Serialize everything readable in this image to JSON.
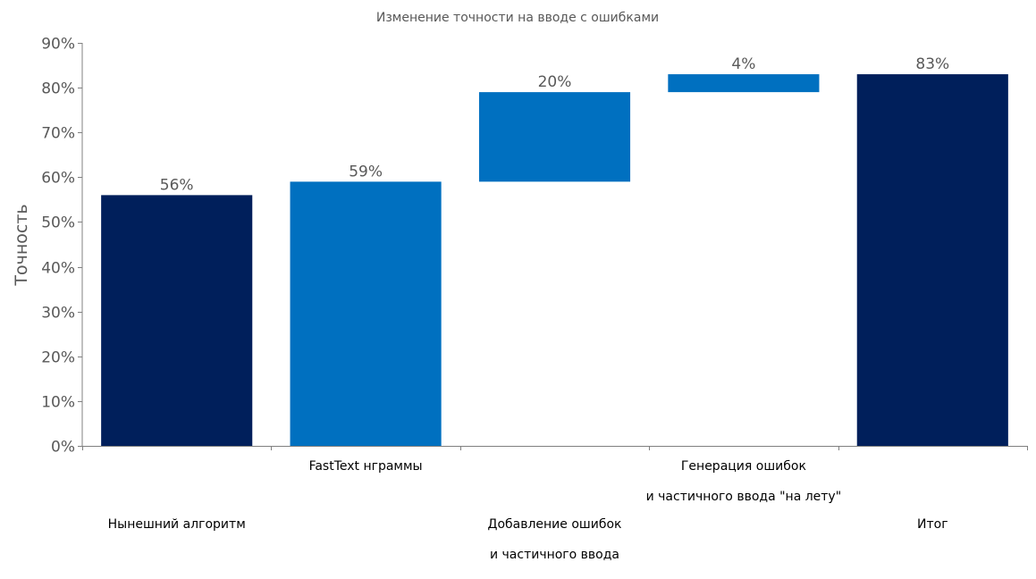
{
  "chart_data": {
    "type": "bar",
    "variant": "waterfall",
    "title": "Изменение точности на вводе с ошибками",
    "ylabel": "Точность",
    "xlabel": "",
    "ylim": [
      0,
      90
    ],
    "yticks": [
      "0%",
      "10%",
      "20%",
      "30%",
      "40%",
      "50%",
      "60%",
      "70%",
      "80%",
      "90%"
    ],
    "grid": false,
    "legend": "none",
    "colors": {
      "total": "#001f5b",
      "step": "#0070c0"
    },
    "bars": [
      {
        "category": [
          "Нынешний алгоритм"
        ],
        "label_row": "low",
        "start": 0,
        "end": 56,
        "label": "56%",
        "kind": "total"
      },
      {
        "category": [
          "FastText нграммы"
        ],
        "label_row": "high",
        "start": 0,
        "end": 59,
        "label": "59%",
        "kind": "step"
      },
      {
        "category": [
          "Добавление ошибок",
          "и частичного ввода"
        ],
        "label_row": "low",
        "start": 59,
        "end": 79,
        "label": "20%",
        "kind": "step"
      },
      {
        "category": [
          "Генерация ошибок",
          "и частичного ввода \"на лету\""
        ],
        "label_row": "high",
        "start": 79,
        "end": 83,
        "label": "4%",
        "kind": "step"
      },
      {
        "category": [
          "Итог"
        ],
        "label_row": "low",
        "start": 0,
        "end": 83,
        "label": "83%",
        "kind": "total"
      }
    ]
  }
}
